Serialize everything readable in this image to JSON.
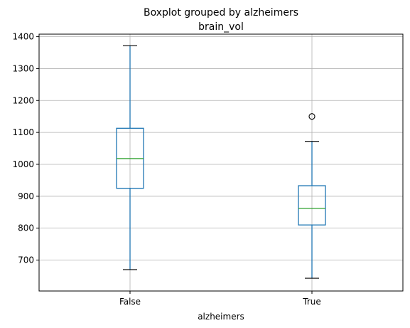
{
  "chart_data": {
    "type": "boxplot",
    "title": "Boxplot grouped by alzheimers",
    "subtitle": "brain_vol",
    "xlabel": "alzheimers",
    "ylabel": "",
    "categories": [
      "False",
      "True"
    ],
    "ylim": [
      603,
      1408
    ],
    "yticks": [
      700,
      800,
      900,
      1000,
      1100,
      1200,
      1300,
      1400
    ],
    "grid": true,
    "boxes": [
      {
        "category": "False",
        "whisker_low": 670,
        "q1": 925,
        "median": 1018,
        "q3": 1113,
        "whisker_high": 1372,
        "outliers": []
      },
      {
        "category": "True",
        "whisker_low": 643,
        "q1": 810,
        "median": 862,
        "q3": 933,
        "whisker_high": 1072,
        "outliers": [
          1150
        ]
      }
    ],
    "colors": {
      "box": "#1f77b4",
      "median": "#2ca02c",
      "grid": "#b0b0b0",
      "outlier": "#000000"
    }
  }
}
